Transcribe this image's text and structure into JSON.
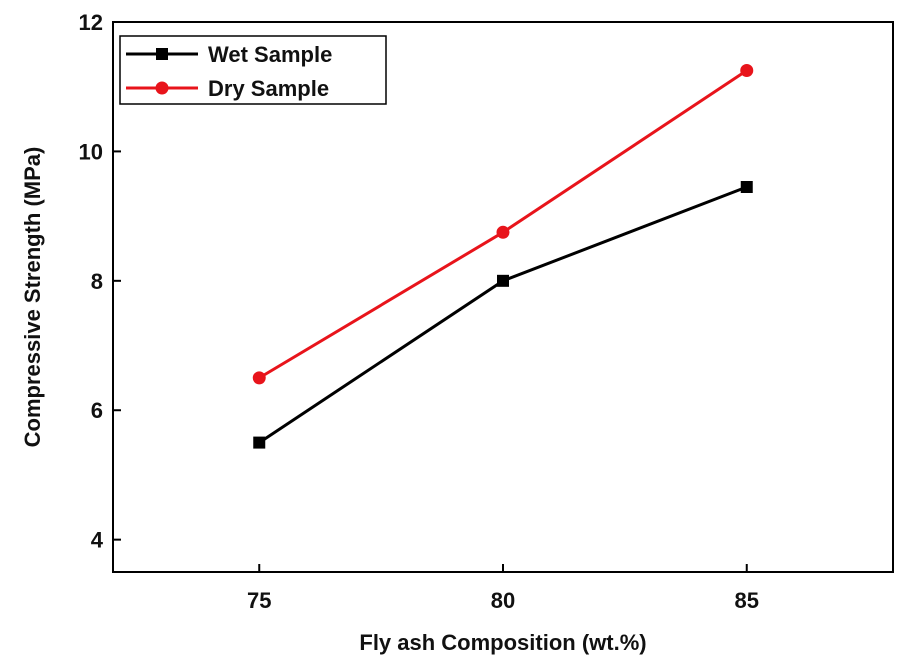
{
  "chart_data": {
    "type": "line",
    "title": "",
    "xlabel": "Fly ash Composition (wt.%)",
    "ylabel": "Compressive Strength (MPa)",
    "x": [
      75,
      80,
      85
    ],
    "xlim": [
      72,
      88
    ],
    "ylim": [
      3.5,
      12
    ],
    "xticks": [
      "75",
      "80",
      "85"
    ],
    "yticks": [
      "4",
      "6",
      "8",
      "10",
      "12"
    ],
    "grid": false,
    "legend_position": "top-left",
    "series": [
      {
        "name": "Wet Sample",
        "values": [
          5.5,
          8.0,
          9.45
        ],
        "color": "#000000",
        "marker": "square"
      },
      {
        "name": "Dry Sample",
        "values": [
          6.5,
          8.75,
          11.25
        ],
        "color": "#e8141b",
        "marker": "circle"
      }
    ]
  }
}
